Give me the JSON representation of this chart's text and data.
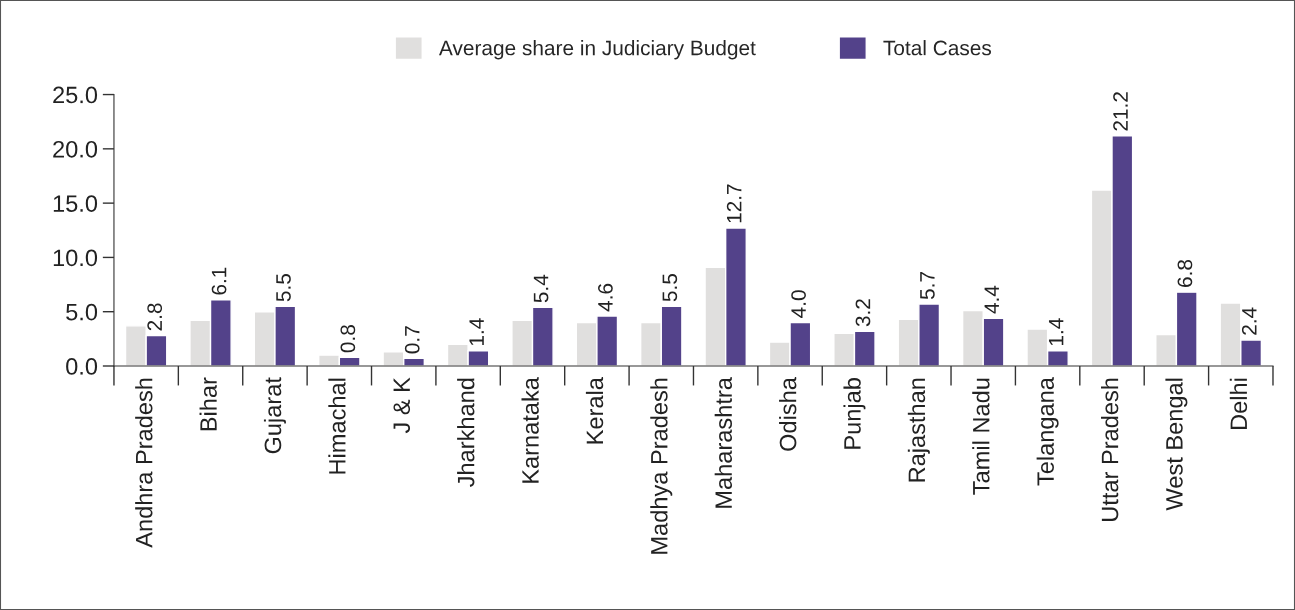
{
  "chart_data": {
    "type": "bar",
    "categories": [
      "Andhra Pradesh",
      "Bihar",
      "Gujarat",
      "Himachal",
      "J & K",
      "Jharkhand",
      "Karnataka",
      "Kerala",
      "Madhya Pradesh",
      "Maharashtra",
      "Odisha",
      "Punjab",
      "Rajasthan",
      "Tamil Nadu",
      "Telangana",
      "Uttar Pradesh",
      "West Bengal",
      "Delhi"
    ],
    "series": [
      {
        "name": "Average share in Judiciary Budget",
        "color": "#e0dfde",
        "values": [
          3.7,
          4.2,
          5.0,
          1.0,
          1.3,
          2.0,
          4.2,
          4.0,
          4.0,
          9.1,
          2.2,
          3.0,
          4.3,
          5.1,
          3.4,
          16.2,
          2.9,
          5.8
        ]
      },
      {
        "name": "Total Cases",
        "color": "#53428a",
        "values": [
          2.8,
          6.1,
          5.5,
          0.8,
          0.7,
          1.4,
          5.4,
          4.6,
          5.5,
          12.7,
          4.0,
          3.2,
          5.7,
          4.4,
          1.4,
          21.2,
          6.8,
          2.4
        ],
        "value_labels": [
          "2.8",
          "6.1",
          "5.5",
          "0.8",
          "0.7",
          "1.4",
          "5.4",
          "4.6",
          "5.5",
          "12.7",
          "4.0",
          "3.2",
          "5.7",
          "4.4",
          "1.4",
          "21.2",
          "6.8",
          "2.4"
        ]
      }
    ],
    "ylim": [
      0,
      25
    ],
    "yticks": [
      {
        "value": 0,
        "label": "0.0"
      },
      {
        "value": 5,
        "label": "5.0"
      },
      {
        "value": 10,
        "label": "10.0"
      },
      {
        "value": 15,
        "label": "15.0"
      },
      {
        "value": 20,
        "label": "20.0"
      },
      {
        "value": 25,
        "label": "25.0"
      }
    ],
    "grid": false,
    "legend": "top"
  }
}
